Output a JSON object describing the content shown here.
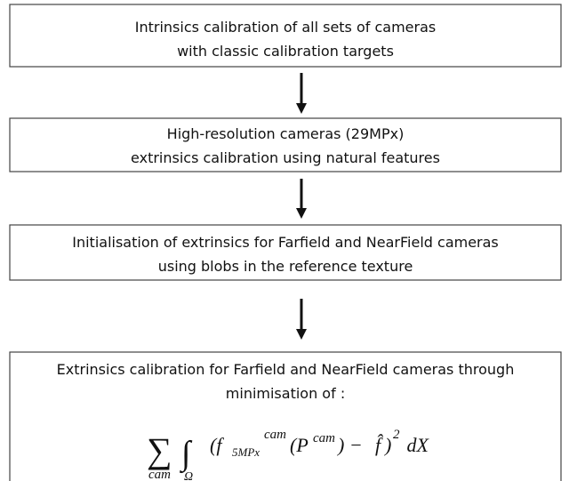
{
  "boxes": [
    {
      "lines": [
        "Intrinsics calibration of all sets of cameras",
        "with classic calibration targets"
      ]
    },
    {
      "lines": [
        "High-resolution cameras (29MPx)",
        "extrinsics calibration using natural features"
      ]
    },
    {
      "lines": [
        "Initialisation of extrinsics for Farfield and NearField cameras",
        "using blobs in the reference texture"
      ]
    },
    {
      "lines": [
        "Extrinsics calibration for Farfield and NearField cameras through",
        "minimisation of :"
      ]
    }
  ],
  "formula": {
    "parts": [
      "∑",
      "cam",
      "∫",
      "Ω",
      "(f",
      "5MPx",
      "cam",
      "(P",
      "cam",
      ") − ",
      "f̂",
      ")",
      "2",
      " dX"
    ]
  }
}
